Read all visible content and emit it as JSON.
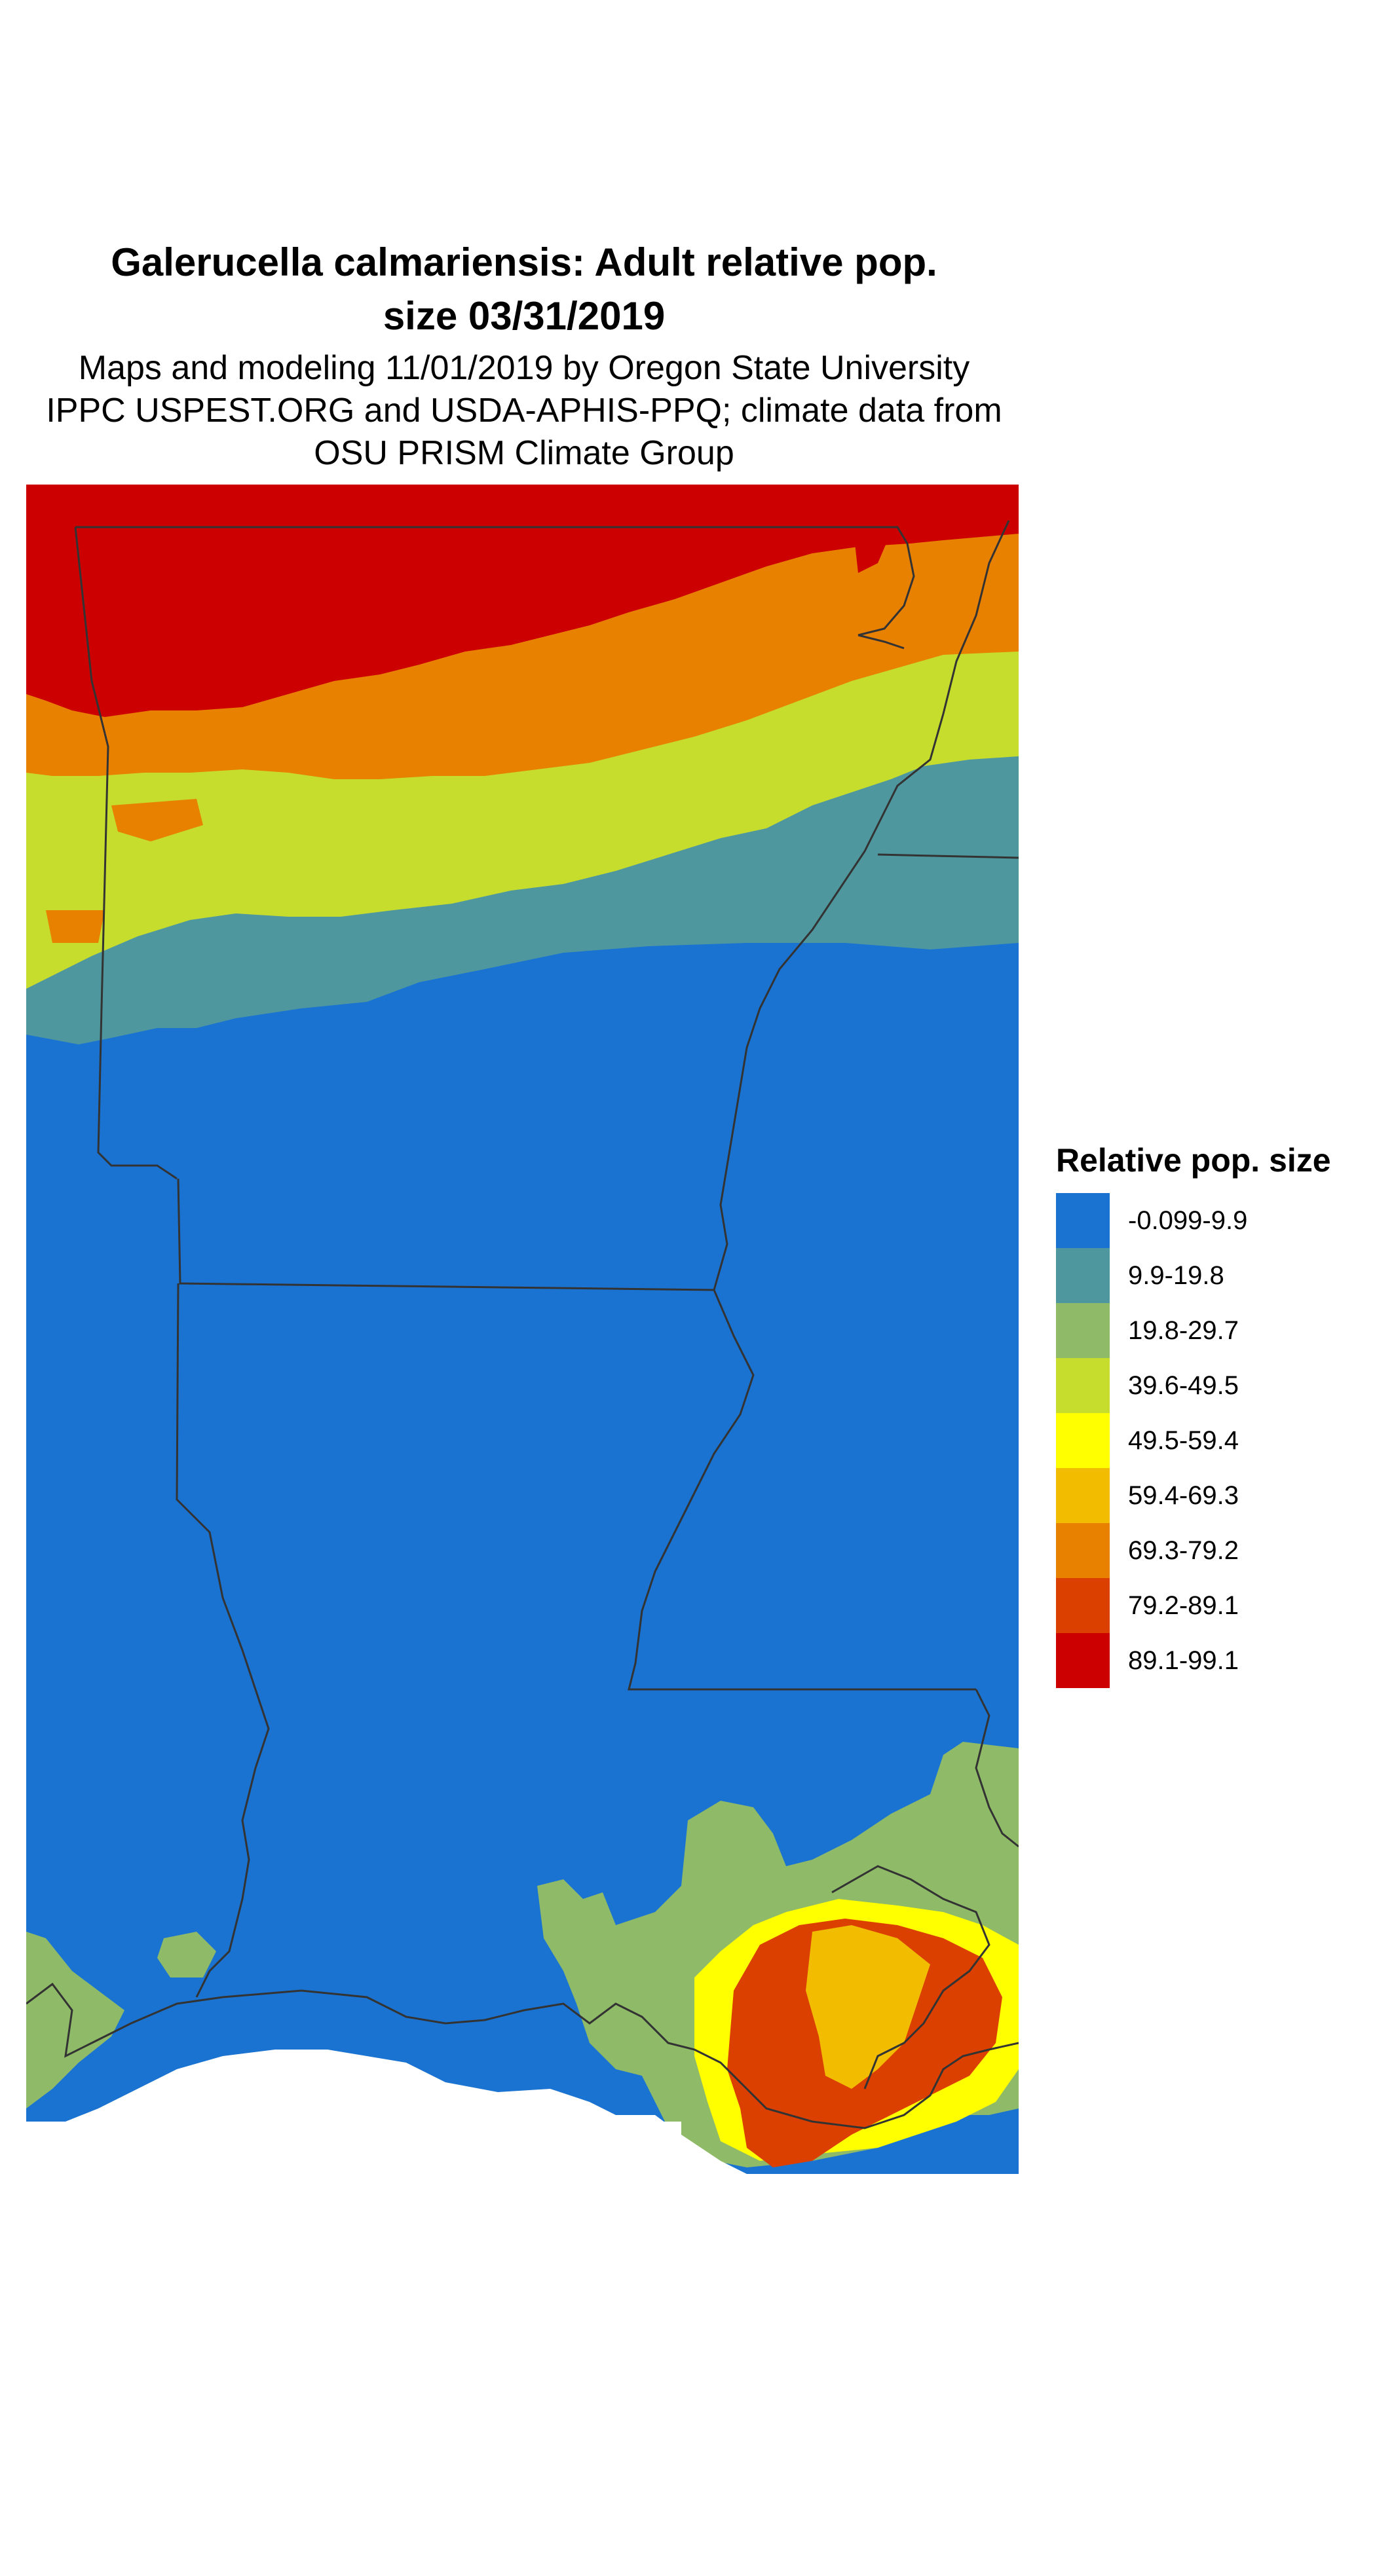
{
  "title": {
    "line1": "Galerucella calmariensis: Adult relative pop.",
    "line2": "size 03/31/2019"
  },
  "subtitle": {
    "line1": "Maps and modeling 11/01/2019 by Oregon State University",
    "line2": "IPPC USPEST.ORG and USDA-APHIS-PPQ; climate data from",
    "line3": "OSU PRISM Climate Group"
  },
  "legend": {
    "title": "Relative pop. size",
    "items": [
      {
        "label": "-0.099-9.9",
        "color": "#1a73d1"
      },
      {
        "label": "9.9-19.8",
        "color": "#4f979e"
      },
      {
        "label": "19.8-29.7",
        "color": "#8fba68"
      },
      {
        "label": "39.6-49.5",
        "color": "#c6dd2d"
      },
      {
        "label": "49.5-59.4",
        "color": "#ffff00"
      },
      {
        "label": "59.4-69.3",
        "color": "#f2bc00"
      },
      {
        "label": "69.3-79.2",
        "color": "#e88000"
      },
      {
        "label": "79.2-89.1",
        "color": "#db4000"
      },
      {
        "label": "89.1-99.1",
        "color": "#cc0000"
      }
    ]
  },
  "map": {
    "region_colors": {
      "class_0": "#1a73d1",
      "class_1": "#4f979e",
      "class_2": "#8fba68",
      "class_4": "#c6dd2d",
      "class_5": "#ffff00",
      "class_6": "#f2bc00",
      "class_7": "#e88000",
      "class_8": "#db4000",
      "class_9": "#cc0000"
    },
    "border_color": "#333333"
  }
}
